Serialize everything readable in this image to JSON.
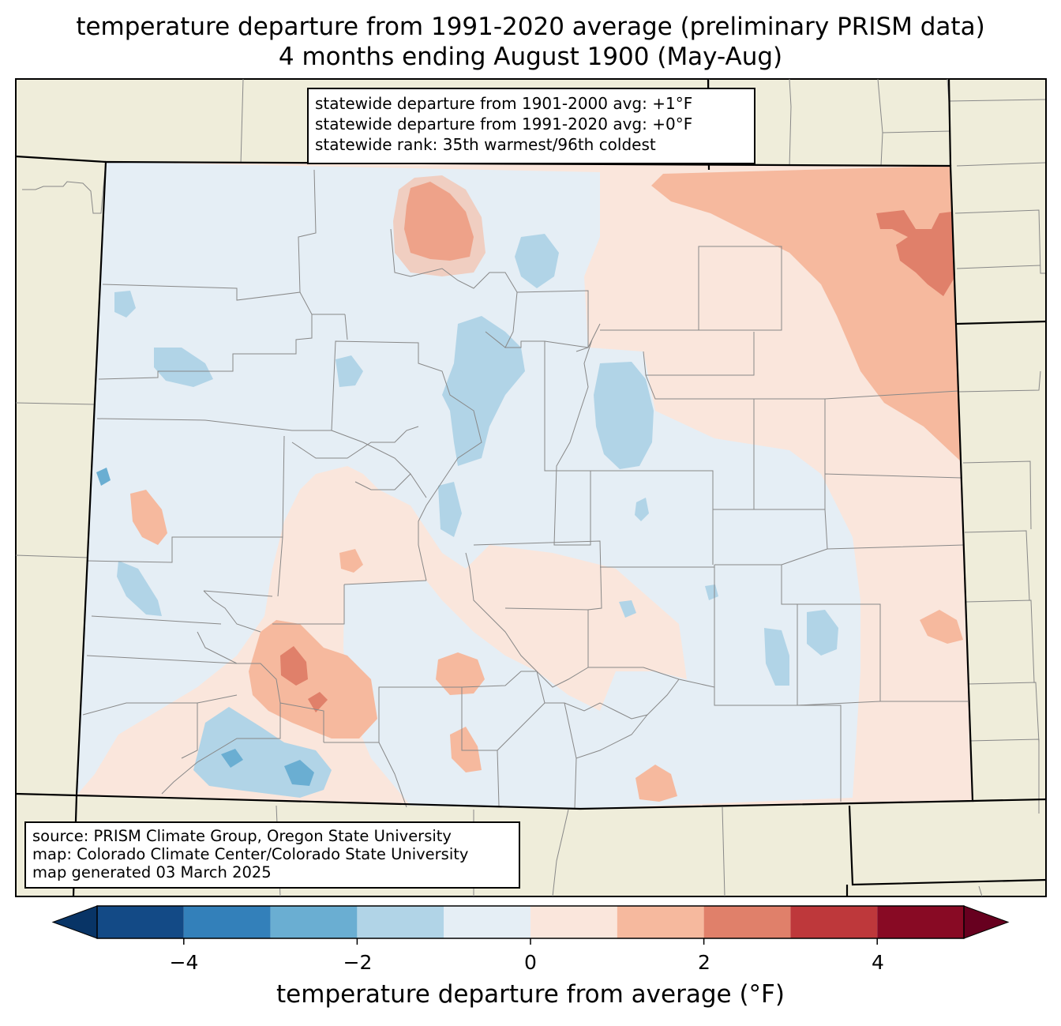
{
  "title": {
    "line1": "temperature departure from 1991-2020 average (preliminary PRISM data)",
    "line2": "4 months ending August 1900 (May-Aug)"
  },
  "stats_box": {
    "line1": "statewide departure from 1901-2000 avg: +1°F",
    "line2": "statewide departure from 1991-2020 avg: +0°F",
    "line3": "statewide rank: 35th warmest/96th coldest"
  },
  "credits_box": {
    "line1": "source: PRISM Climate Group, Oregon State University",
    "line2": "map: Colorado Climate Center/Colorado State University",
    "line3": "map generated 03 March 2025"
  },
  "colorbar": {
    "label": "temperature departure from average (°F)",
    "ticks": [
      "−4",
      "−2",
      "0",
      "2",
      "4"
    ],
    "range": [
      -5,
      5
    ],
    "bins": [
      {
        "min": -5,
        "max": -4,
        "color": "#134a86"
      },
      {
        "min": -4,
        "max": -3,
        "color": "#3380ba"
      },
      {
        "min": -3,
        "max": -2,
        "color": "#6aaed2"
      },
      {
        "min": -2,
        "max": -1,
        "color": "#b1d4e7"
      },
      {
        "min": -1,
        "max": 0,
        "color": "#e5eef5"
      },
      {
        "min": 0,
        "max": 1,
        "color": "#fae6dc"
      },
      {
        "min": 1,
        "max": 2,
        "color": "#f6b99e"
      },
      {
        "min": 2,
        "max": 3,
        "color": "#e0806a"
      },
      {
        "min": 3,
        "max": 4,
        "color": "#be383b"
      },
      {
        "min": 4,
        "max": 5,
        "color": "#880a24"
      }
    ],
    "under_color": "#083466",
    "over_color": "#67001f"
  },
  "map_colors": {
    "land_outside": "#efedda",
    "county_line": "#888888",
    "state_line": "#000000"
  }
}
